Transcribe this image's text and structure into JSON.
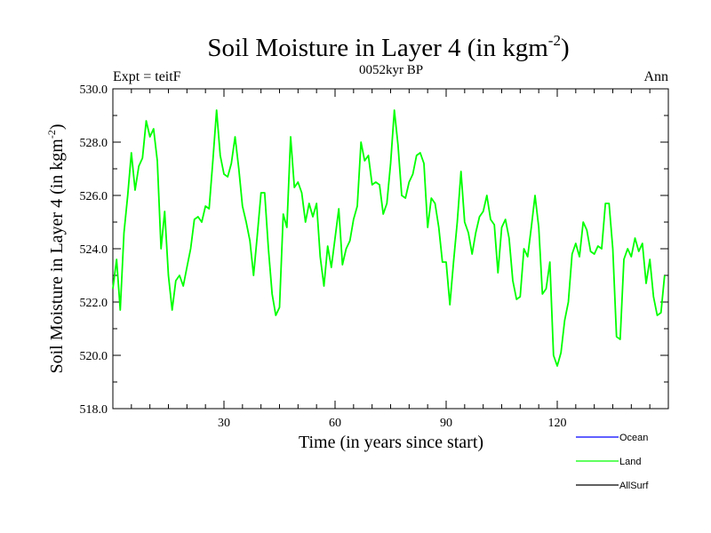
{
  "chart_data": {
    "type": "line",
    "title_main": "Soil Moisture in Layer 4 (in kgm",
    "title_sup": "-2",
    "title_close": ")",
    "subtitle_left": "Expt = teitF",
    "subtitle_center": "0052kyr BP",
    "subtitle_right": "Ann",
    "xlabel": "Time (in years since start)",
    "ylabel_main": "Soil Moisture in Layer 4 (in kgm",
    "ylabel_sup": "-2",
    "ylabel_close": ")",
    "xlim": [
      0,
      150
    ],
    "ylim": [
      518,
      530
    ],
    "x_ticks_major": [
      30,
      60,
      90,
      120
    ],
    "x_tick_labels": [
      "30",
      "60",
      "90",
      "120"
    ],
    "y_ticks_major": [
      518,
      520,
      522,
      524,
      526,
      528,
      530
    ],
    "y_tick_labels": [
      "518.0",
      "520.0",
      "522.0",
      "524.0",
      "526.0",
      "528.0",
      "530.0"
    ],
    "legend": [
      {
        "name": "Ocean",
        "color": "#0000ff"
      },
      {
        "name": "Land",
        "color": "#00ff00"
      },
      {
        "name": "AllSurf",
        "color": "#000000"
      }
    ],
    "series": [
      {
        "name": "Land",
        "color": "#00ff00",
        "x_start": 0,
        "x_step": 1,
        "values": [
          522.5,
          523.6,
          521.7,
          524.6,
          526.0,
          527.6,
          526.2,
          527.1,
          527.4,
          528.8,
          528.2,
          528.5,
          527.3,
          524.0,
          525.4,
          523.0,
          521.7,
          522.8,
          523.0,
          522.6,
          523.3,
          524.0,
          525.1,
          525.2,
          525.0,
          525.6,
          525.5,
          527.3,
          529.2,
          527.5,
          526.8,
          526.7,
          527.2,
          528.2,
          527.0,
          525.6,
          525.0,
          524.3,
          523.0,
          524.5,
          526.1,
          526.1,
          524.0,
          522.3,
          521.5,
          521.8,
          525.3,
          524.8,
          528.2,
          526.3,
          526.5,
          526.1,
          525.0,
          525.7,
          525.2,
          525.7,
          523.7,
          522.6,
          524.1,
          523.3,
          524.4,
          525.5,
          523.4,
          524.0,
          524.3,
          525.1,
          525.6,
          528.0,
          527.3,
          527.5,
          526.4,
          526.5,
          526.4,
          525.3,
          525.7,
          527.2,
          529.2,
          527.9,
          526.0,
          525.9,
          526.5,
          526.8,
          527.5,
          527.6,
          527.2,
          524.8,
          525.9,
          525.7,
          524.8,
          523.5,
          523.5,
          521.9,
          523.5,
          525.0,
          526.9,
          525.0,
          524.6,
          523.8,
          524.6,
          525.2,
          525.4,
          526.0,
          525.1,
          524.9,
          523.1,
          524.8,
          525.1,
          524.4,
          522.8,
          522.1,
          522.2,
          524.0,
          523.7,
          524.8,
          526.0,
          524.8,
          522.3,
          522.5,
          523.5,
          520.0,
          519.6,
          520.1,
          521.3,
          522.0,
          523.8,
          524.2,
          523.7,
          525.0,
          524.7,
          523.9,
          523.8,
          524.1,
          524.0,
          525.7,
          525.7,
          524.0,
          520.7,
          520.6,
          523.6,
          524.0,
          523.7,
          524.4,
          523.9,
          524.2,
          522.7,
          523.6,
          522.2,
          521.5,
          521.6,
          523.0
        ]
      }
    ]
  }
}
